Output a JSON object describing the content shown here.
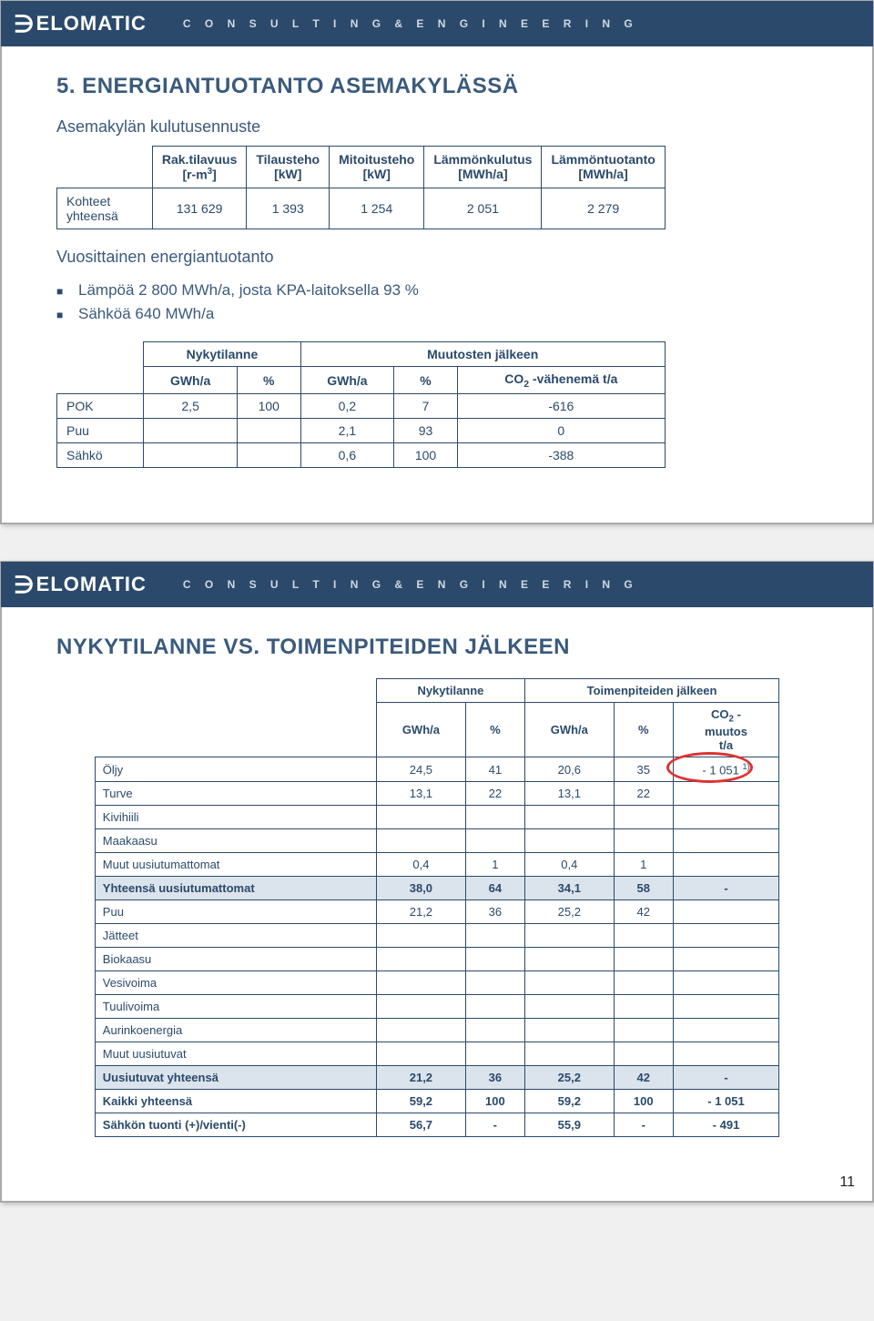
{
  "brand": {
    "logoText": "ELOMATIC",
    "tagline": "C O N S U L T I N G   &   E N G I N E E R I N G"
  },
  "slide1": {
    "title": "5. ENERGIANTUOTANTO ASEMAKYLÄSSÄ",
    "sub1": "Asemakylän kulutusennuste",
    "table1": {
      "headers": [
        "",
        "Rak.tilavuus\n[r-m³]",
        "Tilausteho\n[kW]",
        "Mitoitusteho\n[kW]",
        "Lämmönkulutus\n[MWh/a]",
        "Lämmöntuotanto\n[MWh/a]"
      ],
      "row": [
        "Kohteet yhteensä",
        "131 629",
        "1 393",
        "1 254",
        "2 051",
        "2 279"
      ]
    },
    "sub2": "Vuosittainen energiantuotanto",
    "bullets": [
      "Lämpöä 2 800 MWh/a, josta KPA-laitoksella 93 %",
      "Sähköä 640 MWh/a"
    ],
    "table2": {
      "groupHeaders": [
        "",
        "Nykytilanne",
        "Muutosten jälkeen"
      ],
      "subHeaders": [
        "",
        "GWh/a",
        "%",
        "GWh/a",
        "%",
        "CO₂ -vähenemä t/a"
      ],
      "rows": [
        [
          "POK",
          "2,5",
          "100",
          "0,2",
          "7",
          "-616"
        ],
        [
          "Puu",
          "",
          "",
          "2,1",
          "93",
          "0"
        ],
        [
          "Sähkö",
          "",
          "",
          "0,6",
          "100",
          "-388"
        ]
      ]
    }
  },
  "slide2": {
    "title": "NYKYTILANNE VS. TOIMENPITEIDEN JÄLKEEN",
    "table": {
      "groupHeaders": [
        "",
        "Nykytilanne",
        "Toimenpiteiden jälkeen"
      ],
      "subHeaders": [
        "",
        "GWh/a",
        "%",
        "GWh/a",
        "%",
        "CO₂ -\nmuutos\nt/a"
      ],
      "rows": [
        {
          "cells": [
            "Öljy",
            "24,5",
            "41",
            "20,6",
            "35",
            "- 1 051 ¹⁾"
          ],
          "highlight": 5
        },
        {
          "cells": [
            "Turve",
            "13,1",
            "22",
            "13,1",
            "22",
            ""
          ]
        },
        {
          "cells": [
            "Kivihiili",
            "",
            "",
            "",
            "",
            ""
          ]
        },
        {
          "cells": [
            "Maakaasu",
            "",
            "",
            "",
            "",
            ""
          ]
        },
        {
          "cells": [
            "Muut uusiutumattomat",
            "0,4",
            "1",
            "0,4",
            "1",
            ""
          ]
        },
        {
          "cells": [
            "Yhteensä uusiutumattomat",
            "38,0",
            "64",
            "34,1",
            "58",
            "-"
          ],
          "shaded": true
        },
        {
          "cells": [
            "Puu",
            "21,2",
            "36",
            "25,2",
            "42",
            ""
          ]
        },
        {
          "cells": [
            "Jätteet",
            "",
            "",
            "",
            "",
            ""
          ]
        },
        {
          "cells": [
            "Biokaasu",
            "",
            "",
            "",
            "",
            ""
          ]
        },
        {
          "cells": [
            "Vesivoima",
            "",
            "",
            "",
            "",
            ""
          ]
        },
        {
          "cells": [
            "Tuulivoima",
            "",
            "",
            "",
            "",
            ""
          ]
        },
        {
          "cells": [
            "Aurinkoenergia",
            "",
            "",
            "",
            "",
            ""
          ]
        },
        {
          "cells": [
            "Muut uusiutuvat",
            "",
            "",
            "",
            "",
            ""
          ]
        },
        {
          "cells": [
            "Uusiutuvat yhteensä",
            "21,2",
            "36",
            "25,2",
            "42",
            "-"
          ],
          "shaded": true
        },
        {
          "cells": [
            "Kaikki yhteensä",
            "59,2",
            "100",
            "59,2",
            "100",
            "- 1 051"
          ],
          "bold": true
        },
        {
          "cells": [
            "Sähkön tuonti (+)/vienti(-)",
            "56,7",
            "-",
            "55,9",
            "-",
            "- 491"
          ],
          "bold": true
        }
      ]
    }
  },
  "pageNum": "11"
}
